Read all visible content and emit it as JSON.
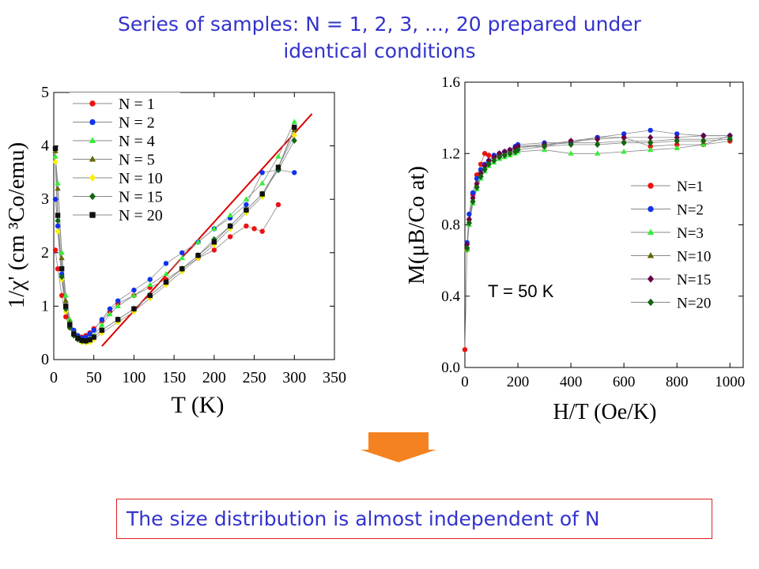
{
  "title_line1": "Series of samples: N = 1, 2, 3, ..., 20 prepared under",
  "title_line2": "identical conditions",
  "conclusion": "The size distribution is almost independent of N",
  "arrow_color": "#f58220",
  "chart_data": [
    {
      "type": "scatter",
      "xlabel": "T (K)",
      "ylabel": "1/χ' (cm ³Co/emu)",
      "xlim": [
        0,
        350
      ],
      "ylim": [
        0,
        5
      ],
      "xticks": [
        0,
        50,
        100,
        150,
        200,
        250,
        300,
        350
      ],
      "yticks": [
        0,
        1,
        2,
        3,
        4,
        5
      ],
      "legend_position": "top-left",
      "fit_line": {
        "color": "#dd0000",
        "x": [
          60,
          322
        ],
        "y": [
          0.25,
          4.6
        ]
      },
      "series": [
        {
          "name": "N = 1",
          "color": "#ee1111",
          "marker": "circle",
          "x": [
            2,
            5,
            10,
            15,
            20,
            25,
            30,
            35,
            40,
            45,
            50,
            60,
            70,
            80,
            100,
            120,
            140,
            160,
            180,
            200,
            220,
            240,
            250,
            260,
            280
          ],
          "y": [
            2.05,
            1.7,
            1.2,
            0.8,
            0.6,
            0.48,
            0.42,
            0.42,
            0.45,
            0.5,
            0.58,
            0.72,
            0.9,
            1.05,
            1.2,
            1.35,
            1.5,
            1.7,
            1.9,
            2.05,
            2.3,
            2.5,
            2.45,
            2.4,
            2.9
          ]
        },
        {
          "name": "N = 2",
          "color": "#1133ee",
          "marker": "circle",
          "x": [
            2,
            5,
            10,
            15,
            20,
            25,
            30,
            35,
            40,
            45,
            50,
            60,
            70,
            80,
            100,
            120,
            140,
            160,
            180,
            200,
            220,
            240,
            260,
            280,
            300
          ],
          "y": [
            3.0,
            2.5,
            1.6,
            1.0,
            0.7,
            0.55,
            0.45,
            0.4,
            0.42,
            0.48,
            0.55,
            0.75,
            0.95,
            1.1,
            1.3,
            1.5,
            1.8,
            2.0,
            2.2,
            2.45,
            2.65,
            2.9,
            3.5,
            3.55,
            3.5
          ]
        },
        {
          "name": "N = 4",
          "color": "#33ee33",
          "marker": "triangle",
          "x": [
            2,
            5,
            10,
            15,
            20,
            25,
            30,
            35,
            40,
            45,
            50,
            60,
            70,
            80,
            100,
            120,
            140,
            160,
            180,
            200,
            220,
            240,
            260,
            280,
            300
          ],
          "y": [
            3.8,
            3.3,
            2.0,
            1.2,
            0.75,
            0.5,
            0.4,
            0.35,
            0.33,
            0.35,
            0.45,
            0.65,
            0.85,
            1.0,
            1.2,
            1.4,
            1.6,
            1.9,
            2.2,
            2.45,
            2.7,
            3.0,
            3.3,
            3.8,
            4.45
          ]
        },
        {
          "name": "N = 5",
          "color": "#666600",
          "marker": "triangle",
          "x": [
            2,
            5,
            10,
            15,
            20,
            25,
            30,
            35,
            40,
            45,
            50,
            60,
            80,
            100,
            120,
            140,
            160,
            180,
            200,
            220,
            240,
            260,
            280,
            300
          ],
          "y": [
            3.9,
            3.2,
            1.9,
            1.1,
            0.7,
            0.5,
            0.4,
            0.35,
            0.35,
            0.38,
            0.42,
            0.55,
            0.75,
            0.95,
            1.2,
            1.45,
            1.7,
            1.95,
            2.2,
            2.5,
            2.8,
            3.1,
            3.6,
            4.3
          ]
        },
        {
          "name": "N = 10",
          "color": "#ffee00",
          "marker": "diamond",
          "x": [
            2,
            5,
            10,
            15,
            20,
            25,
            30,
            35,
            40,
            45,
            50,
            60,
            80,
            100,
            120,
            140,
            160,
            180,
            200,
            220,
            240,
            260,
            280,
            300
          ],
          "y": [
            3.7,
            2.4,
            1.5,
            0.9,
            0.6,
            0.45,
            0.38,
            0.33,
            0.32,
            0.33,
            0.38,
            0.5,
            0.7,
            0.9,
            1.15,
            1.4,
            1.65,
            1.9,
            2.15,
            2.45,
            2.75,
            3.05,
            3.6,
            4.2
          ]
        },
        {
          "name": "N = 15",
          "color": "#116611",
          "marker": "diamond",
          "x": [
            2,
            5,
            10,
            15,
            20,
            25,
            30,
            35,
            40,
            45,
            50,
            60,
            80,
            100,
            120,
            140,
            160,
            180,
            200,
            220,
            240,
            260,
            280,
            300
          ],
          "y": [
            3.95,
            2.6,
            1.55,
            0.95,
            0.6,
            0.45,
            0.38,
            0.35,
            0.35,
            0.38,
            0.42,
            0.55,
            0.75,
            0.95,
            1.2,
            1.45,
            1.7,
            1.95,
            2.25,
            2.5,
            2.8,
            3.1,
            3.55,
            4.1
          ]
        },
        {
          "name": "N = 20",
          "color": "#111111",
          "marker": "square",
          "x": [
            2,
            5,
            10,
            15,
            20,
            25,
            30,
            35,
            40,
            45,
            50,
            60,
            80,
            100,
            120,
            140,
            160,
            180,
            200,
            220,
            240,
            260,
            280,
            300
          ],
          "y": [
            3.95,
            2.7,
            1.7,
            1.0,
            0.65,
            0.48,
            0.4,
            0.36,
            0.35,
            0.37,
            0.42,
            0.55,
            0.75,
            0.95,
            1.2,
            1.45,
            1.7,
            1.95,
            2.2,
            2.5,
            2.8,
            3.1,
            3.6,
            4.35
          ]
        }
      ]
    },
    {
      "type": "scatter",
      "xlabel": "H/T (Oe/K)",
      "ylabel": "M(μB/Co at)",
      "annotation": "T = 50 K",
      "xlim": [
        0,
        1050
      ],
      "ylim": [
        0,
        1.6
      ],
      "xticks": [
        0,
        200,
        400,
        600,
        800,
        1000
      ],
      "yticks": [
        0.0,
        0.4,
        0.8,
        1.2,
        1.6
      ],
      "legend_position": "right",
      "series": [
        {
          "name": "N=1",
          "color": "#ee1111",
          "marker": "circle",
          "x": [
            0,
            8,
            16,
            30,
            45,
            60,
            75,
            90,
            110,
            130,
            150,
            170,
            190,
            200,
            300,
            400,
            500,
            600,
            700,
            800,
            900,
            1000
          ],
          "y": [
            0.1,
            0.66,
            0.83,
            0.97,
            1.08,
            1.14,
            1.2,
            1.19,
            1.18,
            1.19,
            1.21,
            1.22,
            1.23,
            1.24,
            1.24,
            1.27,
            1.29,
            1.29,
            1.24,
            1.25,
            1.25,
            1.27
          ]
        },
        {
          "name": "N=2",
          "color": "#1133ee",
          "marker": "circle",
          "x": [
            8,
            16,
            30,
            45,
            60,
            75,
            90,
            110,
            130,
            150,
            170,
            190,
            200,
            300,
            400,
            500,
            600,
            700,
            800,
            900,
            1000
          ],
          "y": [
            0.7,
            0.86,
            0.98,
            1.06,
            1.11,
            1.14,
            1.16,
            1.19,
            1.2,
            1.21,
            1.22,
            1.24,
            1.25,
            1.26,
            1.26,
            1.29,
            1.31,
            1.33,
            1.31,
            1.3,
            1.3
          ]
        },
        {
          "name": "N=3",
          "color": "#33ee33",
          "marker": "triangle",
          "x": [
            8,
            16,
            30,
            45,
            60,
            75,
            90,
            110,
            130,
            150,
            170,
            190,
            200,
            300,
            400,
            500,
            600,
            700,
            800,
            900,
            1000
          ],
          "y": [
            0.66,
            0.8,
            0.92,
            1.0,
            1.06,
            1.1,
            1.13,
            1.15,
            1.17,
            1.18,
            1.19,
            1.2,
            1.21,
            1.22,
            1.2,
            1.2,
            1.21,
            1.22,
            1.23,
            1.25,
            1.3
          ]
        },
        {
          "name": "N=10",
          "color": "#666600",
          "marker": "triangle",
          "x": [
            8,
            16,
            30,
            45,
            60,
            75,
            90,
            110,
            130,
            150,
            170,
            190,
            200,
            300,
            400,
            500,
            600,
            700,
            800,
            900,
            1000
          ],
          "y": [
            0.68,
            0.82,
            0.94,
            1.02,
            1.08,
            1.12,
            1.15,
            1.17,
            1.19,
            1.2,
            1.21,
            1.22,
            1.23,
            1.25,
            1.26,
            1.26,
            1.27,
            1.27,
            1.28,
            1.28,
            1.29
          ]
        },
        {
          "name": "N=15",
          "color": "#660044",
          "marker": "diamond",
          "x": [
            8,
            16,
            30,
            45,
            60,
            75,
            90,
            110,
            130,
            150,
            170,
            190,
            200,
            300,
            400,
            500,
            600,
            700,
            800,
            900,
            1000
          ],
          "y": [
            0.69,
            0.83,
            0.95,
            1.03,
            1.09,
            1.13,
            1.16,
            1.18,
            1.2,
            1.21,
            1.22,
            1.23,
            1.24,
            1.25,
            1.27,
            1.28,
            1.29,
            1.29,
            1.29,
            1.3,
            1.3
          ]
        },
        {
          "name": "N=20",
          "color": "#116611",
          "marker": "diamond",
          "x": [
            8,
            16,
            30,
            45,
            60,
            75,
            90,
            110,
            130,
            150,
            170,
            190,
            200,
            300,
            400,
            500,
            600,
            700,
            800,
            900,
            1000
          ],
          "y": [
            0.67,
            0.81,
            0.93,
            1.01,
            1.07,
            1.11,
            1.14,
            1.16,
            1.18,
            1.19,
            1.2,
            1.21,
            1.22,
            1.24,
            1.25,
            1.25,
            1.26,
            1.26,
            1.27,
            1.27,
            1.28
          ]
        }
      ]
    }
  ]
}
